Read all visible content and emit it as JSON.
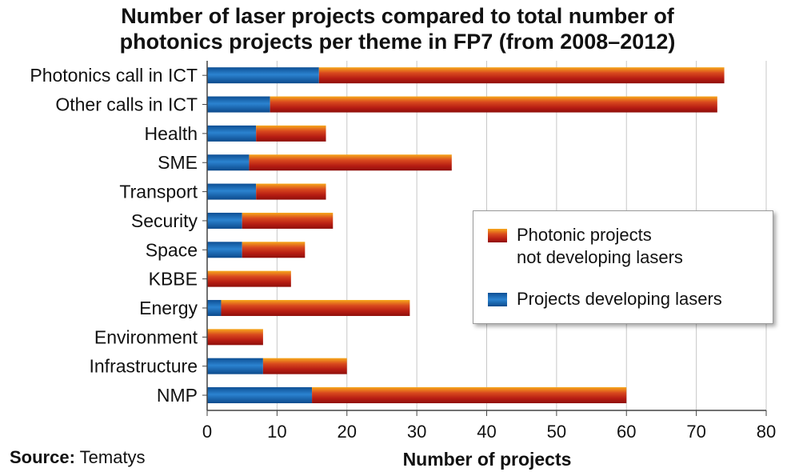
{
  "title_lines": [
    "Number of laser projects compared to total number of",
    "photonics projects per theme in FP7 (from 2008–2012)"
  ],
  "source": {
    "label": "Source:",
    "value": "Tematys"
  },
  "chart_data": {
    "type": "bar",
    "orientation": "horizontal",
    "stacked": true,
    "title": "Number of laser projects compared to total number of photonics projects per theme in FP7 (from 2008–2012)",
    "xlabel": "Number of projects",
    "ylabel": "",
    "xlim": [
      0,
      80
    ],
    "xticks": [
      0,
      10,
      20,
      30,
      40,
      50,
      60,
      70,
      80
    ],
    "grid": "vertical",
    "legend_position": "right",
    "categories": [
      "Photonics call in ICT",
      "Other calls in ICT",
      "Health",
      "SME",
      "Transport",
      "Security",
      "Space",
      "KBBE",
      "Energy",
      "Environment",
      "Infrastructure",
      "NMP"
    ],
    "series": [
      {
        "name": "Projects developing lasers",
        "color": "#1f6fb5",
        "values": [
          16,
          9,
          7,
          6,
          7,
          5,
          5,
          0,
          2,
          0,
          8,
          15
        ]
      },
      {
        "name": "Photonic projects not developing lasers",
        "color": "#c0311a",
        "values": [
          58,
          64,
          10,
          29,
          10,
          13,
          9,
          12,
          27,
          8,
          12,
          45
        ]
      }
    ],
    "legend_entries": [
      {
        "series": 1,
        "lines": [
          "Photonic projects",
          "not developing lasers"
        ]
      },
      {
        "series": 0,
        "lines": [
          "Projects developing lasers"
        ]
      }
    ]
  }
}
